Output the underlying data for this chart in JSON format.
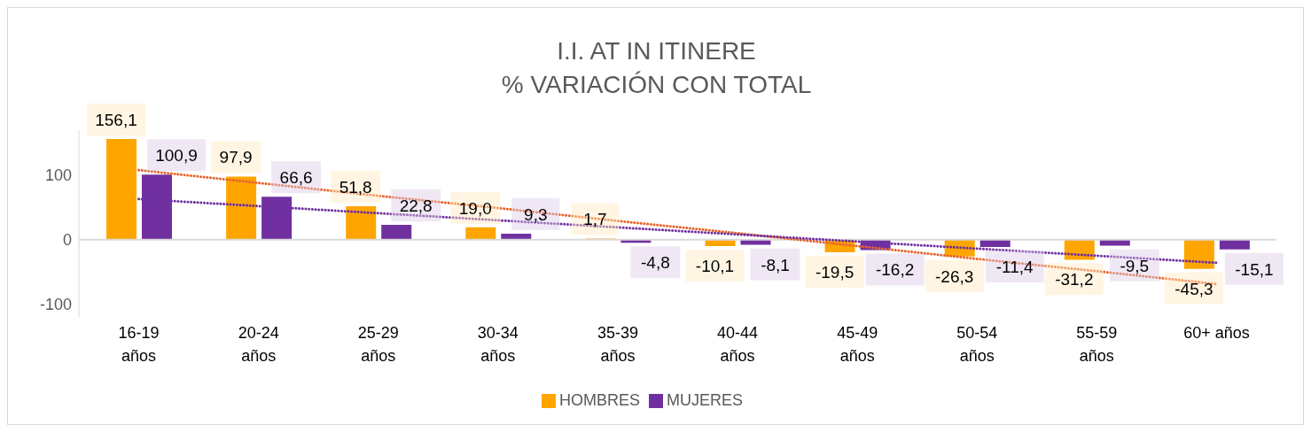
{
  "chart_data": {
    "type": "bar",
    "title": "I.I. AT IN ITINERE\n% VARIACIÓN CON TOTAL",
    "categories": [
      "16-19 años",
      "20-24 años",
      "25-29 años",
      "30-34 años",
      "35-39 años",
      "40-44 años",
      "45-49 años",
      "50-54 años",
      "55-59 años",
      "60+ años"
    ],
    "series": [
      {
        "name": "HOMBRES",
        "color": "#ffa500",
        "values": [
          156.1,
          97.9,
          51.8,
          19.0,
          1.7,
          -10.1,
          -19.5,
          -26.3,
          -31.2,
          -45.3
        ],
        "value_labels": [
          "156,1",
          "97,9",
          "51,8",
          "19,0",
          "1,7",
          "-10,1",
          "-19,5",
          "-26,3",
          "-31,2",
          "-45,3"
        ]
      },
      {
        "name": "MUJERES",
        "color": "#7030a0",
        "values": [
          100.9,
          66.6,
          22.8,
          9.3,
          -4.8,
          -8.1,
          -16.2,
          -11.4,
          -9.5,
          -15.1
        ],
        "value_labels": [
          "100,9",
          "66,6",
          "22,8",
          "9,3",
          "-4,8",
          "-8,1",
          "-16,2",
          "-11,4",
          "-9,5",
          "-15,1"
        ]
      },
      {
        "type": "line",
        "color": "#e8642a",
        "line_style": "dotted",
        "values": [
          108,
          88,
          68,
          49,
          29,
          10,
          -10,
          -30,
          -49,
          -69
        ]
      },
      {
        "type": "line",
        "color": "#7030a0",
        "line_style": "dotted",
        "values": [
          63,
          52,
          41,
          30,
          19,
          8,
          -3,
          -14,
          -25,
          -36
        ]
      }
    ],
    "ylim": [
      -120,
      170
    ],
    "yticks": [
      -100,
      0,
      100
    ],
    "grid": false,
    "legend": "bottom",
    "ref_lines": [
      {
        "axis": "y",
        "value": 0,
        "color": "#d9d9d9"
      }
    ]
  }
}
